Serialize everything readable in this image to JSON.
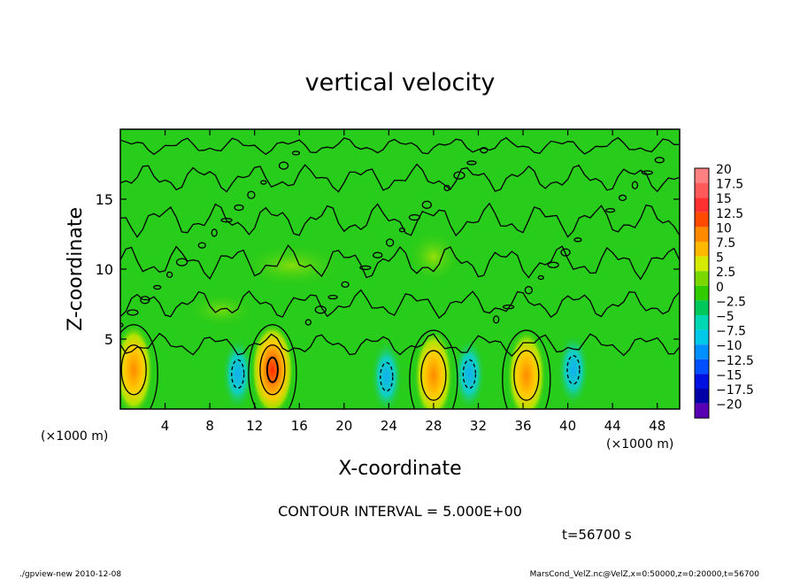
{
  "chart_data": {
    "type": "heatmap",
    "title": "vertical velocity",
    "xlabel": "X-coordinate",
    "ylabel": "Z-coordinate",
    "x_unit": "(×1000 m)",
    "x_unit_right": "(×1000 m)",
    "xlim": [
      0,
      50
    ],
    "ylim": [
      0,
      20
    ],
    "x_ticks": [
      4,
      8,
      12,
      16,
      20,
      24,
      28,
      32,
      36,
      40,
      44,
      48
    ],
    "y_ticks": [
      5,
      10,
      15
    ],
    "contour_interval_text": "CONTOUR INTERVAL = 5.000E+00",
    "time_text": "t=56700 s",
    "colorbar": {
      "labels": [
        "20",
        "17.5",
        "15",
        "12.5",
        "10",
        "7.5",
        "5",
        "2.5",
        "0",
        "−2.5",
        "−5",
        "−7.5",
        "−10",
        "−12.5",
        "−15",
        "−17.5",
        "−20"
      ],
      "colors": [
        "#ff8080",
        "#ff5a5a",
        "#ff3030",
        "#ff4a00",
        "#ff8a00",
        "#ffb800",
        "#d4ea00",
        "#7ad800",
        "#30cc00",
        "#00c85a",
        "#00d8b4",
        "#00c8e8",
        "#0090ff",
        "#0050ff",
        "#0010e0",
        "#0000a8",
        "#5a00b4"
      ]
    },
    "features": [
      {
        "type": "updraft",
        "x": 1.2,
        "z": 2.8,
        "max": 7.5
      },
      {
        "type": "downdraft",
        "x": 10.5,
        "z": 2.5,
        "min": -7.5
      },
      {
        "type": "updraft",
        "x": 13.6,
        "z": 2.8,
        "max": 17.5
      },
      {
        "type": "downdraft",
        "x": 23.8,
        "z": 2.3,
        "min": -7.5
      },
      {
        "type": "updraft",
        "x": 28.0,
        "z": 2.4,
        "max": 10
      },
      {
        "type": "downdraft",
        "x": 31.2,
        "z": 2.5,
        "min": -7.5
      },
      {
        "type": "updraft",
        "x": 36.3,
        "z": 2.4,
        "max": 7.5
      },
      {
        "type": "downdraft",
        "x": 40.5,
        "z": 2.8,
        "min": -5
      }
    ]
  },
  "footer": {
    "left": "./gpview-new  2010-12-08",
    "right": "MarsCond_VelZ.nc@VelZ,x=0:50000,z=0:20000,t=56700"
  },
  "colors": {
    "background_field": "#28cc1a",
    "contour_line": "#000000"
  }
}
